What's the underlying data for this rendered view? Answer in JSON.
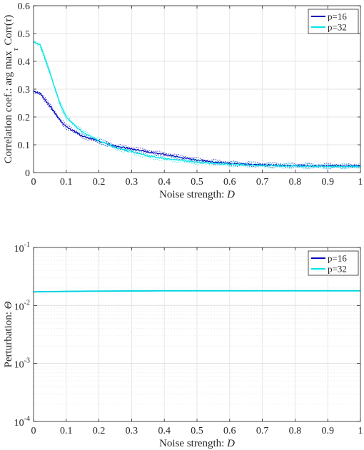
{
  "chart_data": [
    {
      "type": "line",
      "xlabel_text": "Noise strength: ",
      "xlabel_var": "D",
      "ylabel_text": "Correlation coef.: arg max",
      "ylabel_sub": "τ",
      "ylabel_tail_text": " Corr(",
      "ylabel_tail_var": "τ",
      "ylabel_tail_close": ")",
      "xlim": [
        0,
        1
      ],
      "ylim": [
        0,
        0.6
      ],
      "grid": true,
      "legend_position": "top-right",
      "x_ticks": [
        "0",
        "0.1",
        "0.2",
        "0.3",
        "0.4",
        "0.5",
        "0.6",
        "0.7",
        "0.8",
        "0.9",
        "1"
      ],
      "y_ticks": [
        "0",
        "0.1",
        "0.2",
        "0.3",
        "0.4",
        "0.5",
        "0.6"
      ],
      "x": [
        0,
        0.02,
        0.05,
        0.08,
        0.1,
        0.13,
        0.15,
        0.2,
        0.25,
        0.3,
        0.35,
        0.4,
        0.45,
        0.5,
        0.55,
        0.6,
        0.7,
        0.8,
        0.9,
        1.0
      ],
      "series": [
        {
          "name": "p=16",
          "color": "#0000bb",
          "values": [
            0.29,
            0.285,
            0.24,
            0.19,
            0.165,
            0.145,
            0.13,
            0.113,
            0.095,
            0.085,
            0.075,
            0.065,
            0.055,
            0.045,
            0.038,
            0.033,
            0.028,
            0.025,
            0.024,
            0.024
          ]
        },
        {
          "name": "p=32",
          "color": "#00e5e5",
          "values": [
            0.47,
            0.46,
            0.36,
            0.25,
            0.2,
            0.165,
            0.145,
            0.115,
            0.09,
            0.075,
            0.06,
            0.05,
            0.045,
            0.038,
            0.033,
            0.03,
            0.025,
            0.023,
            0.022,
            0.022
          ]
        }
      ]
    },
    {
      "type": "line",
      "xlabel_text": "Noise strength: ",
      "xlabel_var": "D",
      "ylabel_text": "Perturbation: ",
      "ylabel_var": "Θ",
      "xlim": [
        0,
        1
      ],
      "ylim": [
        0.0001,
        0.1
      ],
      "yscale": "log",
      "grid": true,
      "minor_grid": true,
      "legend_position": "top-right",
      "x_ticks": [
        "0",
        "0.1",
        "0.2",
        "0.3",
        "0.4",
        "0.5",
        "0.6",
        "0.7",
        "0.8",
        "0.9",
        "1"
      ],
      "y_ticks": [
        {
          "value": 0.0001,
          "base": "10",
          "exp": "-4"
        },
        {
          "value": 0.001,
          "base": "10",
          "exp": "-3"
        },
        {
          "value": 0.01,
          "base": "10",
          "exp": "-2"
        },
        {
          "value": 0.1,
          "base": "10",
          "exp": "-1"
        }
      ],
      "x": [
        0,
        0.1,
        0.2,
        0.3,
        0.4,
        0.5,
        0.6,
        0.7,
        0.8,
        0.9,
        1.0
      ],
      "series": [
        {
          "name": "p=16",
          "color": "#0000bb",
          "values": [
            0.0172,
            0.0175,
            0.0177,
            0.0178,
            0.0179,
            0.0179,
            0.0179,
            0.0179,
            0.0179,
            0.0179,
            0.0179
          ]
        },
        {
          "name": "p=32",
          "color": "#00e5e5",
          "values": [
            0.0172,
            0.0175,
            0.0177,
            0.0178,
            0.0179,
            0.0179,
            0.0179,
            0.0179,
            0.0179,
            0.0179,
            0.0179
          ]
        }
      ]
    }
  ]
}
